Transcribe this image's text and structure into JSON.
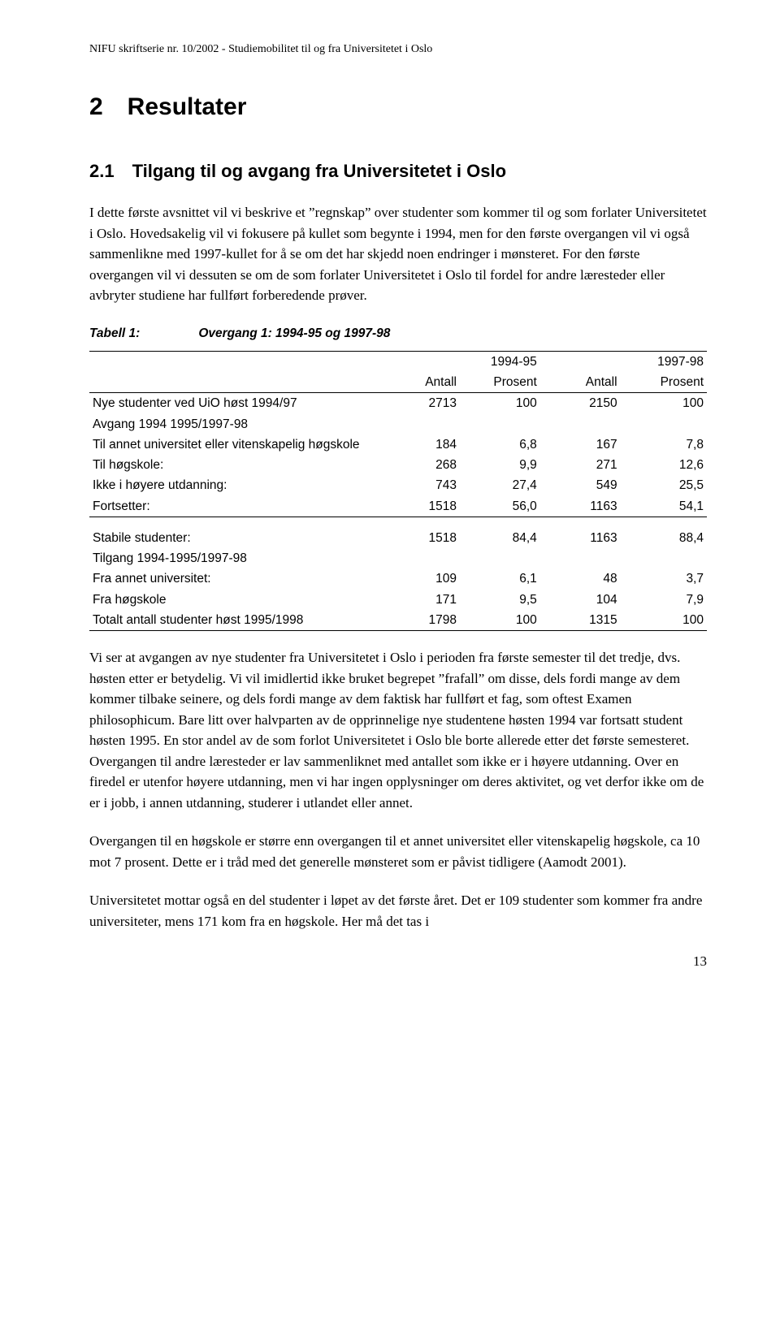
{
  "headerNote": "NIFU skriftserie nr. 10/2002 - Studiemobilitet til og fra Universitetet i Oslo",
  "h1": "2 Resultater",
  "h2": "2.1 Tilgang til og avgang fra Universitetet i Oslo",
  "para1": "I dette første avsnittet vil vi beskrive et ”regnskap” over studenter som kommer til og som forlater Universitetet i Oslo. Hovedsakelig vil vi fokusere på kullet som begynte i 1994, men for den første overgangen vil vi også sammenlikne med 1997-kullet for å se om det har skjedd noen endringer i mønsteret. For den første overgangen vil vi dessuten se om de som forlater Universitetet i Oslo til fordel for andre læresteder eller avbryter studiene har fullført forberedende prøver.",
  "tableCaption": {
    "label": "Tabell 1:",
    "text": "Overgang 1: 1994-95 og 1997-98"
  },
  "table": {
    "groupHeaders": [
      "1994-95",
      "1997-98"
    ],
    "subHeaders": [
      "Antall",
      "Prosent",
      "Antall",
      "Prosent"
    ],
    "rows1": [
      {
        "label": "Nye studenter ved UiO høst 1994/97",
        "c": [
          "2713",
          "100",
          "2150",
          "100"
        ]
      },
      {
        "label": "Avgang 1994 1995/1997-98",
        "c": [
          "",
          "",
          "",
          ""
        ]
      },
      {
        "label": "Til annet universitet eller vitenskapelig høgskole",
        "c": [
          "184",
          "6,8",
          "167",
          "7,8"
        ]
      },
      {
        "label": "Til høgskole:",
        "c": [
          "268",
          "9,9",
          "271",
          "12,6"
        ]
      },
      {
        "label": "Ikke i høyere utdanning:",
        "c": [
          "743",
          "27,4",
          "549",
          "25,5"
        ]
      },
      {
        "label": "Fortsetter:",
        "c": [
          "1518",
          "56,0",
          "1163",
          "54,1"
        ]
      }
    ],
    "rows2": [
      {
        "label": "Stabile studenter:",
        "c": [
          "1518",
          "84,4",
          "1163",
          "88,4"
        ]
      },
      {
        "label": "Tilgang 1994-1995/1997-98",
        "c": [
          "",
          "",
          "",
          ""
        ]
      },
      {
        "label": "Fra annet universitet:",
        "c": [
          "109",
          "6,1",
          "48",
          "3,7"
        ]
      },
      {
        "label": "Fra høgskole",
        "c": [
          "171",
          "9,5",
          "104",
          "7,9"
        ]
      },
      {
        "label": "Totalt antall studenter høst 1995/1998",
        "c": [
          "1798",
          "100",
          "1315",
          "100"
        ]
      }
    ]
  },
  "para2": "Vi ser at avgangen av nye studenter fra Universitetet i Oslo i perioden fra første semester til det tredje, dvs. høsten etter er betydelig. Vi vil imidlertid ikke bruket begrepet ”frafall” om disse, dels fordi mange av dem kommer tilbake seinere, og dels fordi mange av dem faktisk har fullført et fag, som oftest Examen philosophicum. Bare litt over halvparten av de opprinnelige nye studentene høsten 1994 var fortsatt student høsten 1995. En stor andel av de som forlot Universitetet i Oslo ble borte allerede etter det første semesteret. Overgangen til andre læresteder er lav sammenliknet med antallet som ikke er i høyere utdanning. Over en firedel er utenfor høyere utdanning, men vi har ingen opplysninger om deres aktivitet, og vet derfor ikke om de er i jobb, i annen utdanning, studerer i utlandet eller annet.",
  "para3": "Overgangen til en høgskole er større enn overgangen til et annet universitet eller vitenskapelig høgskole, ca 10 mot 7 prosent. Dette er i tråd med det generelle mønsteret som er påvist tidligere (Aamodt 2001).",
  "para4": "Universitetet mottar også en del studenter i løpet av det første året. Det er 109 studenter som kommer fra andre universiteter, mens 171 kom fra en høgskole. Her må det tas i",
  "pageNumber": "13",
  "colors": {
    "text": "#000000",
    "background": "#ffffff",
    "rule": "#000000"
  },
  "fonts": {
    "body": "Times New Roman",
    "headings": "Arial",
    "table": "Arial"
  }
}
